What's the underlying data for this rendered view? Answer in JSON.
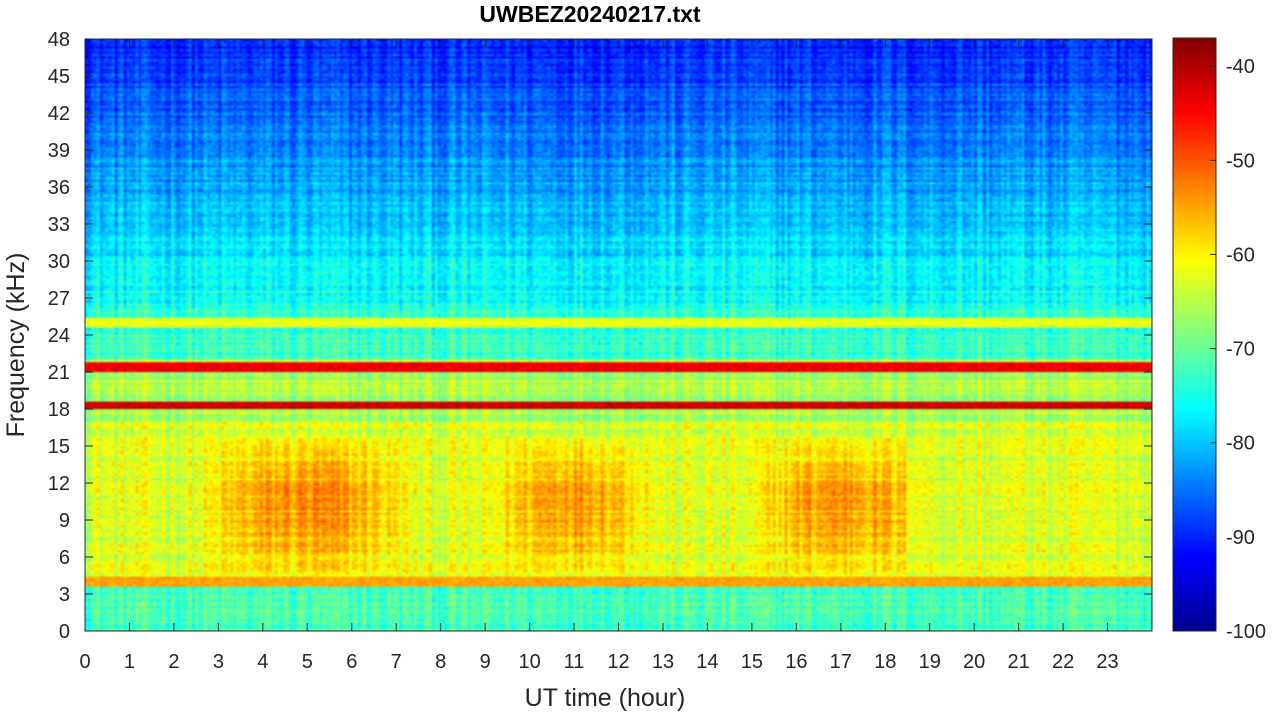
{
  "chart_data": {
    "type": "heatmap",
    "title": "UWBEZ20240217.txt",
    "xlabel": "UT time (hour)",
    "ylabel": "Frequency (kHz)",
    "xlim": [
      0,
      24
    ],
    "ylim": [
      0,
      48
    ],
    "x_ticks": [
      0,
      1,
      2,
      3,
      4,
      5,
      6,
      7,
      8,
      9,
      10,
      11,
      12,
      13,
      14,
      15,
      16,
      17,
      18,
      19,
      20,
      21,
      22,
      23
    ],
    "y_ticks": [
      0,
      3,
      6,
      9,
      12,
      15,
      18,
      21,
      24,
      27,
      30,
      33,
      36,
      39,
      42,
      45,
      48
    ],
    "colorbar": {
      "label": "",
      "colormap": "jet",
      "range": [
        -100,
        -37
      ],
      "ticks": [
        -40,
        -50,
        -60,
        -70,
        -80,
        -90,
        -100
      ]
    },
    "colors": {
      "jet": [
        "#00008f",
        "#0000ff",
        "#0080ff",
        "#00ffff",
        "#80ff80",
        "#ffff00",
        "#ff8000",
        "#ff0000",
        "#800000"
      ]
    },
    "notable_features": [
      {
        "kind": "horizontal_line",
        "freq_khz": 18.3,
        "level_db": -42
      },
      {
        "kind": "horizontal_line",
        "freq_khz": 21.4,
        "level_db": -44
      },
      {
        "kind": "horizontal_line",
        "freq_khz": 4.0,
        "level_db": -55
      },
      {
        "kind": "horizontal_line",
        "freq_khz": 25.0,
        "level_db": -62
      },
      {
        "kind": "broadband_activity",
        "freq_khz_range": [
          4,
          16
        ],
        "time_hours_ranges": [
          [
            2.5,
            7.5
          ],
          [
            9,
            13
          ],
          [
            15,
            19
          ]
        ],
        "level_db": -55
      }
    ]
  }
}
